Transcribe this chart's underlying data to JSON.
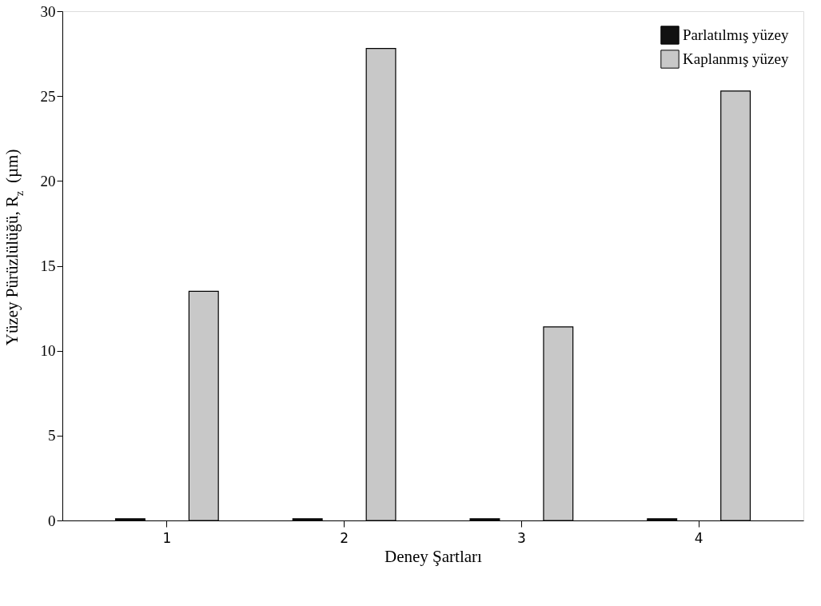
{
  "chart_data": {
    "type": "bar",
    "xlabel": "Deney Şartları",
    "ylabel": "Yüzey Pürüzlülüğü, R$_{z}$ (µm)",
    "categories": [
      "1",
      "2",
      "3",
      "4"
    ],
    "series": [
      {
        "name": "Parlatılmış yüzey",
        "color": "#111111",
        "values": [
          0.1,
          0.1,
          0.1,
          0.1
        ]
      },
      {
        "name": "Kaplanmış yüzey",
        "color": "#c8c8c8",
        "values": [
          13.5,
          27.8,
          11.4,
          25.3
        ]
      }
    ],
    "ylim": [
      0,
      30
    ],
    "yticks": [
      0,
      5,
      10,
      15,
      20,
      25,
      30
    ],
    "grid": false,
    "legend": "top right"
  }
}
